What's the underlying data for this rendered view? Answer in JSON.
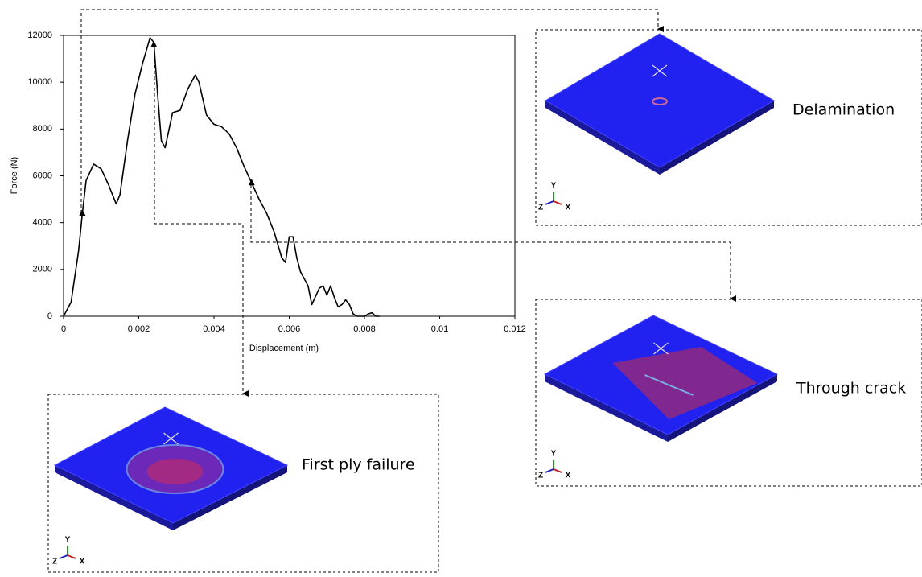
{
  "chart_data": {
    "type": "line",
    "x_label": "Displacement (m)",
    "y_label": "Force (N)",
    "x": [
      0,
      0.0002,
      0.0004,
      0.0005,
      0.0006,
      0.0008,
      0.001,
      0.0012,
      0.0014,
      0.0015,
      0.0017,
      0.0019,
      0.0021,
      0.0023,
      0.0024,
      0.0025,
      0.0026,
      0.0027,
      0.0029,
      0.0031,
      0.0033,
      0.0035,
      0.0036,
      0.0038,
      0.004,
      0.0042,
      0.0044,
      0.0046,
      0.0048,
      0.005,
      0.0052,
      0.0054,
      0.0056,
      0.0058,
      0.0059,
      0.006,
      0.0061,
      0.0062,
      0.0063,
      0.0065,
      0.0066,
      0.0068,
      0.0069,
      0.007,
      0.0071,
      0.0072,
      0.0073,
      0.0074,
      0.0075,
      0.0076,
      0.0077,
      0.0078,
      0.008,
      0.0081,
      0.0082,
      0.0083,
      0.0084
    ],
    "values": [
      0,
      600,
      2800,
      4400,
      5800,
      6500,
      6300,
      5600,
      4800,
      5200,
      7500,
      9500,
      10800,
      11900,
      11700,
      9500,
      7500,
      7200,
      8700,
      8800,
      9700,
      10300,
      10000,
      8600,
      8200,
      8100,
      7800,
      7200,
      6400,
      5700,
      5000,
      4400,
      3600,
      2500,
      2300,
      3400,
      3400,
      2500,
      1900,
      1300,
      500,
      1200,
      1300,
      900,
      1300,
      800,
      400,
      500,
      700,
      500,
      100,
      0,
      0,
      100,
      150,
      0,
      0
    ],
    "color": "#000000",
    "markers": {
      "x": [
        0.0005,
        0.0024,
        0.005
      ],
      "values": [
        4400,
        11600,
        5700
      ]
    },
    "xlim": [
      0,
      0.012
    ],
    "xticks": [
      0,
      0.002,
      0.004,
      0.006,
      0.008,
      0.01,
      0.012
    ],
    "ylim": [
      0,
      12000
    ],
    "yticks": [
      0,
      2000,
      4000,
      6000,
      8000,
      10000,
      12000
    ],
    "annotations": [
      {
        "label": "Delamination",
        "axes": [
          "Y",
          "Z",
          "X"
        ]
      },
      {
        "label": "Through crack",
        "axes": [
          "Y",
          "Z",
          "X"
        ]
      },
      {
        "label": "First ply failure",
        "axes": [
          "Y",
          "Z",
          "X"
        ]
      }
    ]
  }
}
